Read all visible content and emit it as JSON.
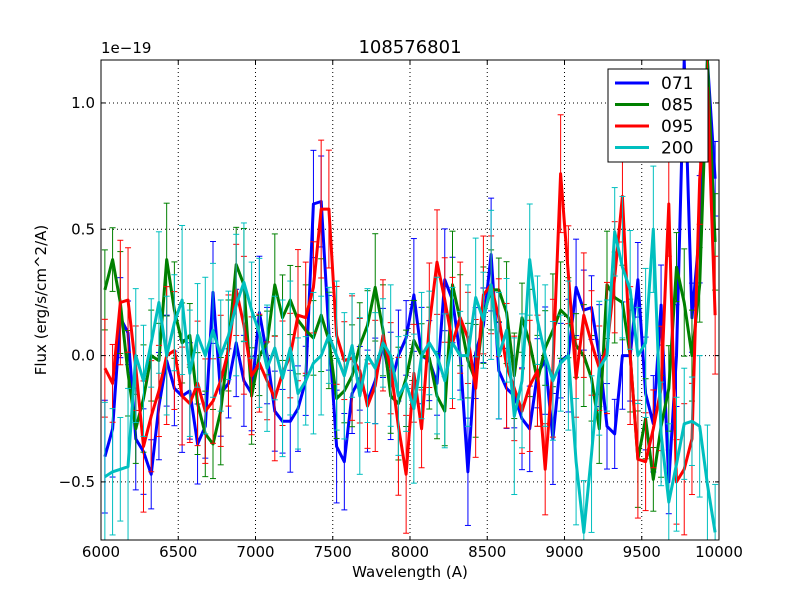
{
  "chart_data": {
    "type": "line",
    "title": "108576801",
    "xlabel": "Wavelength (A)",
    "ylabel": "Flux (erg/s/cm^2/A)",
    "offset_text": "1e−19",
    "xlim": [
      6000,
      10000
    ],
    "ylim": [
      -0.73,
      1.17
    ],
    "grid": true,
    "legend_position": "top-right",
    "xticks": [
      6000,
      6500,
      7000,
      7500,
      8000,
      8500,
      9000,
      9500,
      10000
    ],
    "xtick_labels": [
      "6000",
      "6500",
      "7000",
      "7500",
      "8000",
      "8500",
      "9000",
      "9500",
      "10000"
    ],
    "yticks": [
      -0.5,
      0.0,
      0.5,
      1.0
    ],
    "ytick_labels": [
      "−0.5",
      "0.0",
      "0.5",
      "1.0"
    ],
    "series": [
      {
        "name": "071",
        "color": "#0000ff",
        "x": [
          6025,
          6075,
          6125,
          6175,
          6225,
          6275,
          6325,
          6375,
          6425,
          6475,
          6525,
          6575,
          6625,
          6675,
          6725,
          6775,
          6825,
          6875,
          6925,
          6975,
          7025,
          7075,
          7125,
          7175,
          7225,
          7275,
          7325,
          7375,
          7425,
          7475,
          7525,
          7575,
          7625,
          7675,
          7725,
          7775,
          7825,
          7875,
          7925,
          7975,
          8025,
          8075,
          8125,
          8175,
          8225,
          8275,
          8325,
          8375,
          8425,
          8475,
          8525,
          8575,
          8625,
          8675,
          8725,
          8775,
          8825,
          8875,
          8925,
          8975,
          9025,
          9075,
          9125,
          9175,
          9225,
          9275,
          9325,
          9375,
          9425,
          9475,
          9525,
          9575,
          9625,
          9675,
          9725,
          9775,
          9825,
          9875,
          9925,
          9975
        ],
        "y": [
          -0.4,
          -0.29,
          0.15,
          0.09,
          -0.33,
          -0.38,
          -0.47,
          -0.2,
          -0.02,
          -0.13,
          -0.16,
          -0.14,
          -0.35,
          -0.28,
          0.25,
          -0.15,
          -0.11,
          0.05,
          -0.1,
          -0.15,
          0.17,
          0.0,
          -0.22,
          -0.26,
          -0.26,
          -0.21,
          -0.1,
          0.6,
          0.61,
          0.09,
          -0.36,
          -0.42,
          -0.15,
          -0.09,
          -0.18,
          -0.1,
          0.05,
          -0.12,
          0.0,
          0.07,
          0.24,
          0.0,
          -0.02,
          -0.11,
          0.3,
          0.22,
          0.0,
          -0.46,
          0.01,
          0.12,
          0.4,
          -0.06,
          -0.13,
          -0.16,
          -0.25,
          -0.29,
          -0.07,
          -0.02,
          -0.33,
          -0.02,
          0.0,
          0.27,
          0.18,
          0.19,
          0.0,
          -0.28,
          -0.31,
          0.0,
          0.0,
          0.3,
          -0.15,
          -0.27,
          0.2,
          -0.5,
          0.0,
          1.17,
          0.15,
          0.5,
          1.17,
          0.7
        ],
        "err": 0.18
      },
      {
        "name": "085",
        "color": "#008000",
        "x": [
          6025,
          6075,
          6125,
          6175,
          6225,
          6275,
          6325,
          6375,
          6425,
          6475,
          6525,
          6575,
          6625,
          6675,
          6725,
          6775,
          6825,
          6875,
          6925,
          6975,
          7025,
          7075,
          7125,
          7175,
          7225,
          7275,
          7325,
          7375,
          7425,
          7475,
          7525,
          7575,
          7625,
          7675,
          7725,
          7775,
          7825,
          7875,
          7925,
          7975,
          8025,
          8075,
          8125,
          8175,
          8225,
          8275,
          8325,
          8375,
          8425,
          8475,
          8525,
          8575,
          8625,
          8675,
          8725,
          8775,
          8825,
          8875,
          8925,
          8975,
          9025,
          9075,
          9125,
          9175,
          9225,
          9275,
          9325,
          9375,
          9425,
          9475,
          9525,
          9575,
          9625,
          9675,
          9725,
          9775,
          9825,
          9875,
          9925,
          9975
        ],
        "y": [
          0.26,
          0.38,
          0.21,
          -0.07,
          -0.29,
          -0.17,
          0.0,
          -0.02,
          0.38,
          0.18,
          0.05,
          0.08,
          -0.19,
          -0.31,
          -0.35,
          -0.22,
          0.04,
          0.36,
          0.28,
          -0.16,
          0.0,
          0.05,
          0.28,
          0.15,
          0.22,
          0.14,
          0.1,
          0.07,
          0.16,
          0.06,
          -0.17,
          -0.14,
          -0.08,
          0.04,
          0.12,
          0.27,
          0.1,
          -0.16,
          -0.19,
          -0.09,
          0.06,
          0.0,
          -0.01,
          -0.16,
          -0.22,
          0.28,
          0.14,
          -0.02,
          -0.1,
          0.16,
          0.26,
          0.26,
          0.17,
          -0.08,
          0.15,
          0.05,
          -0.1,
          0.03,
          0.1,
          0.18,
          0.15,
          0.04,
          0.0,
          -0.09,
          -0.29,
          0.28,
          0.23,
          0.21,
          0.0,
          -0.41,
          -0.25,
          -0.49,
          -0.28,
          -0.13,
          0.35,
          0.21,
          0.0,
          0.28,
          1.17,
          0.45
        ],
        "err": 0.18
      },
      {
        "name": "095",
        "color": "#ff0000",
        "x": [
          6025,
          6075,
          6125,
          6175,
          6225,
          6275,
          6325,
          6375,
          6425,
          6475,
          6525,
          6575,
          6625,
          6675,
          6725,
          6775,
          6825,
          6875,
          6925,
          6975,
          7025,
          7075,
          7125,
          7175,
          7225,
          7275,
          7325,
          7375,
          7425,
          7475,
          7525,
          7575,
          7625,
          7675,
          7725,
          7775,
          7825,
          7875,
          7925,
          7975,
          8025,
          8075,
          8125,
          8175,
          8225,
          8275,
          8325,
          8375,
          8425,
          8475,
          8525,
          8575,
          8625,
          8675,
          8725,
          8775,
          8825,
          8875,
          8925,
          8975,
          9025,
          9075,
          9125,
          9175,
          9225,
          9275,
          9325,
          9375,
          9425,
          9475,
          9525,
          9575,
          9625,
          9675,
          9725,
          9775,
          9825,
          9875,
          9925,
          9975
        ],
        "y": [
          -0.05,
          -0.11,
          0.21,
          0.22,
          -0.05,
          -0.36,
          -0.24,
          -0.14,
          0.0,
          0.02,
          -0.16,
          -0.19,
          -0.11,
          -0.22,
          -0.18,
          -0.1,
          0.02,
          0.26,
          0.12,
          -0.08,
          -0.03,
          -0.1,
          -0.17,
          -0.07,
          0.0,
          0.16,
          0.15,
          0.27,
          0.58,
          0.58,
          0.08,
          -0.02,
          -0.01,
          -0.06,
          -0.2,
          -0.12,
          0.08,
          -0.05,
          -0.28,
          -0.47,
          -0.07,
          -0.29,
          0.12,
          0.37,
          0.22,
          0.05,
          0.15,
          0.07,
          -0.13,
          0.24,
          0.28,
          0.15,
          -0.04,
          -0.13,
          -0.22,
          -0.12,
          -0.06,
          -0.45,
          -0.05,
          0.72,
          0.32,
          -0.09,
          0.16,
          0.05,
          -0.05,
          0.03,
          0.31,
          0.63,
          0.0,
          -0.41,
          -0.42,
          -0.29,
          -0.13,
          0.6,
          -0.5,
          -0.45,
          -0.33,
          0.7,
          1.06,
          0.16
        ],
        "err": 0.22
      },
      {
        "name": "200",
        "color": "#00bfbf",
        "x": [
          6025,
          6075,
          6125,
          6175,
          6225,
          6275,
          6325,
          6375,
          6425,
          6475,
          6525,
          6575,
          6625,
          6675,
          6725,
          6775,
          6825,
          6875,
          6925,
          6975,
          7025,
          7075,
          7125,
          7175,
          7225,
          7275,
          7325,
          7375,
          7425,
          7475,
          7525,
          7575,
          7625,
          7675,
          7725,
          7775,
          7825,
          7875,
          7925,
          7975,
          8025,
          8075,
          8125,
          8175,
          8225,
          8275,
          8325,
          8375,
          8425,
          8475,
          8525,
          8575,
          8625,
          8675,
          8725,
          8775,
          8825,
          8875,
          8925,
          8975,
          9025,
          9075,
          9125,
          9175,
          9225,
          9275,
          9325,
          9375,
          9425,
          9475,
          9525,
          9575,
          9625,
          9675,
          9725,
          9775,
          9825,
          9875,
          9925,
          9975
        ],
        "y": [
          -0.48,
          -0.46,
          -0.45,
          -0.44,
          0.0,
          -0.1,
          0.05,
          0.21,
          0.0,
          0.13,
          0.22,
          -0.07,
          0.08,
          0.0,
          0.1,
          0.0,
          0.08,
          0.2,
          0.29,
          0.18,
          0.09,
          -0.05,
          0.03,
          -0.09,
          0.03,
          -0.15,
          -0.1,
          -0.03,
          0.0,
          0.08,
          0.0,
          -0.08,
          0.04,
          -0.16,
          0.0,
          -0.05,
          0.05,
          0.0,
          -0.16,
          -0.11,
          -0.21,
          0.0,
          0.05,
          0.0,
          -0.1,
          0.05,
          0.0,
          0.0,
          0.23,
          0.14,
          0.28,
          0.0,
          0.1,
          -0.24,
          -0.1,
          0.38,
          0.14,
          0.0,
          -0.1,
          -0.03,
          0.0,
          -0.42,
          -0.7,
          -0.39,
          -0.05,
          0.0,
          0.49,
          0.35,
          0.26,
          0.0,
          0.05,
          0.5,
          -0.31,
          -0.58,
          -0.43,
          -0.27,
          -0.26,
          -0.28,
          -0.51,
          -0.7
        ],
        "err": 0.25
      }
    ]
  }
}
